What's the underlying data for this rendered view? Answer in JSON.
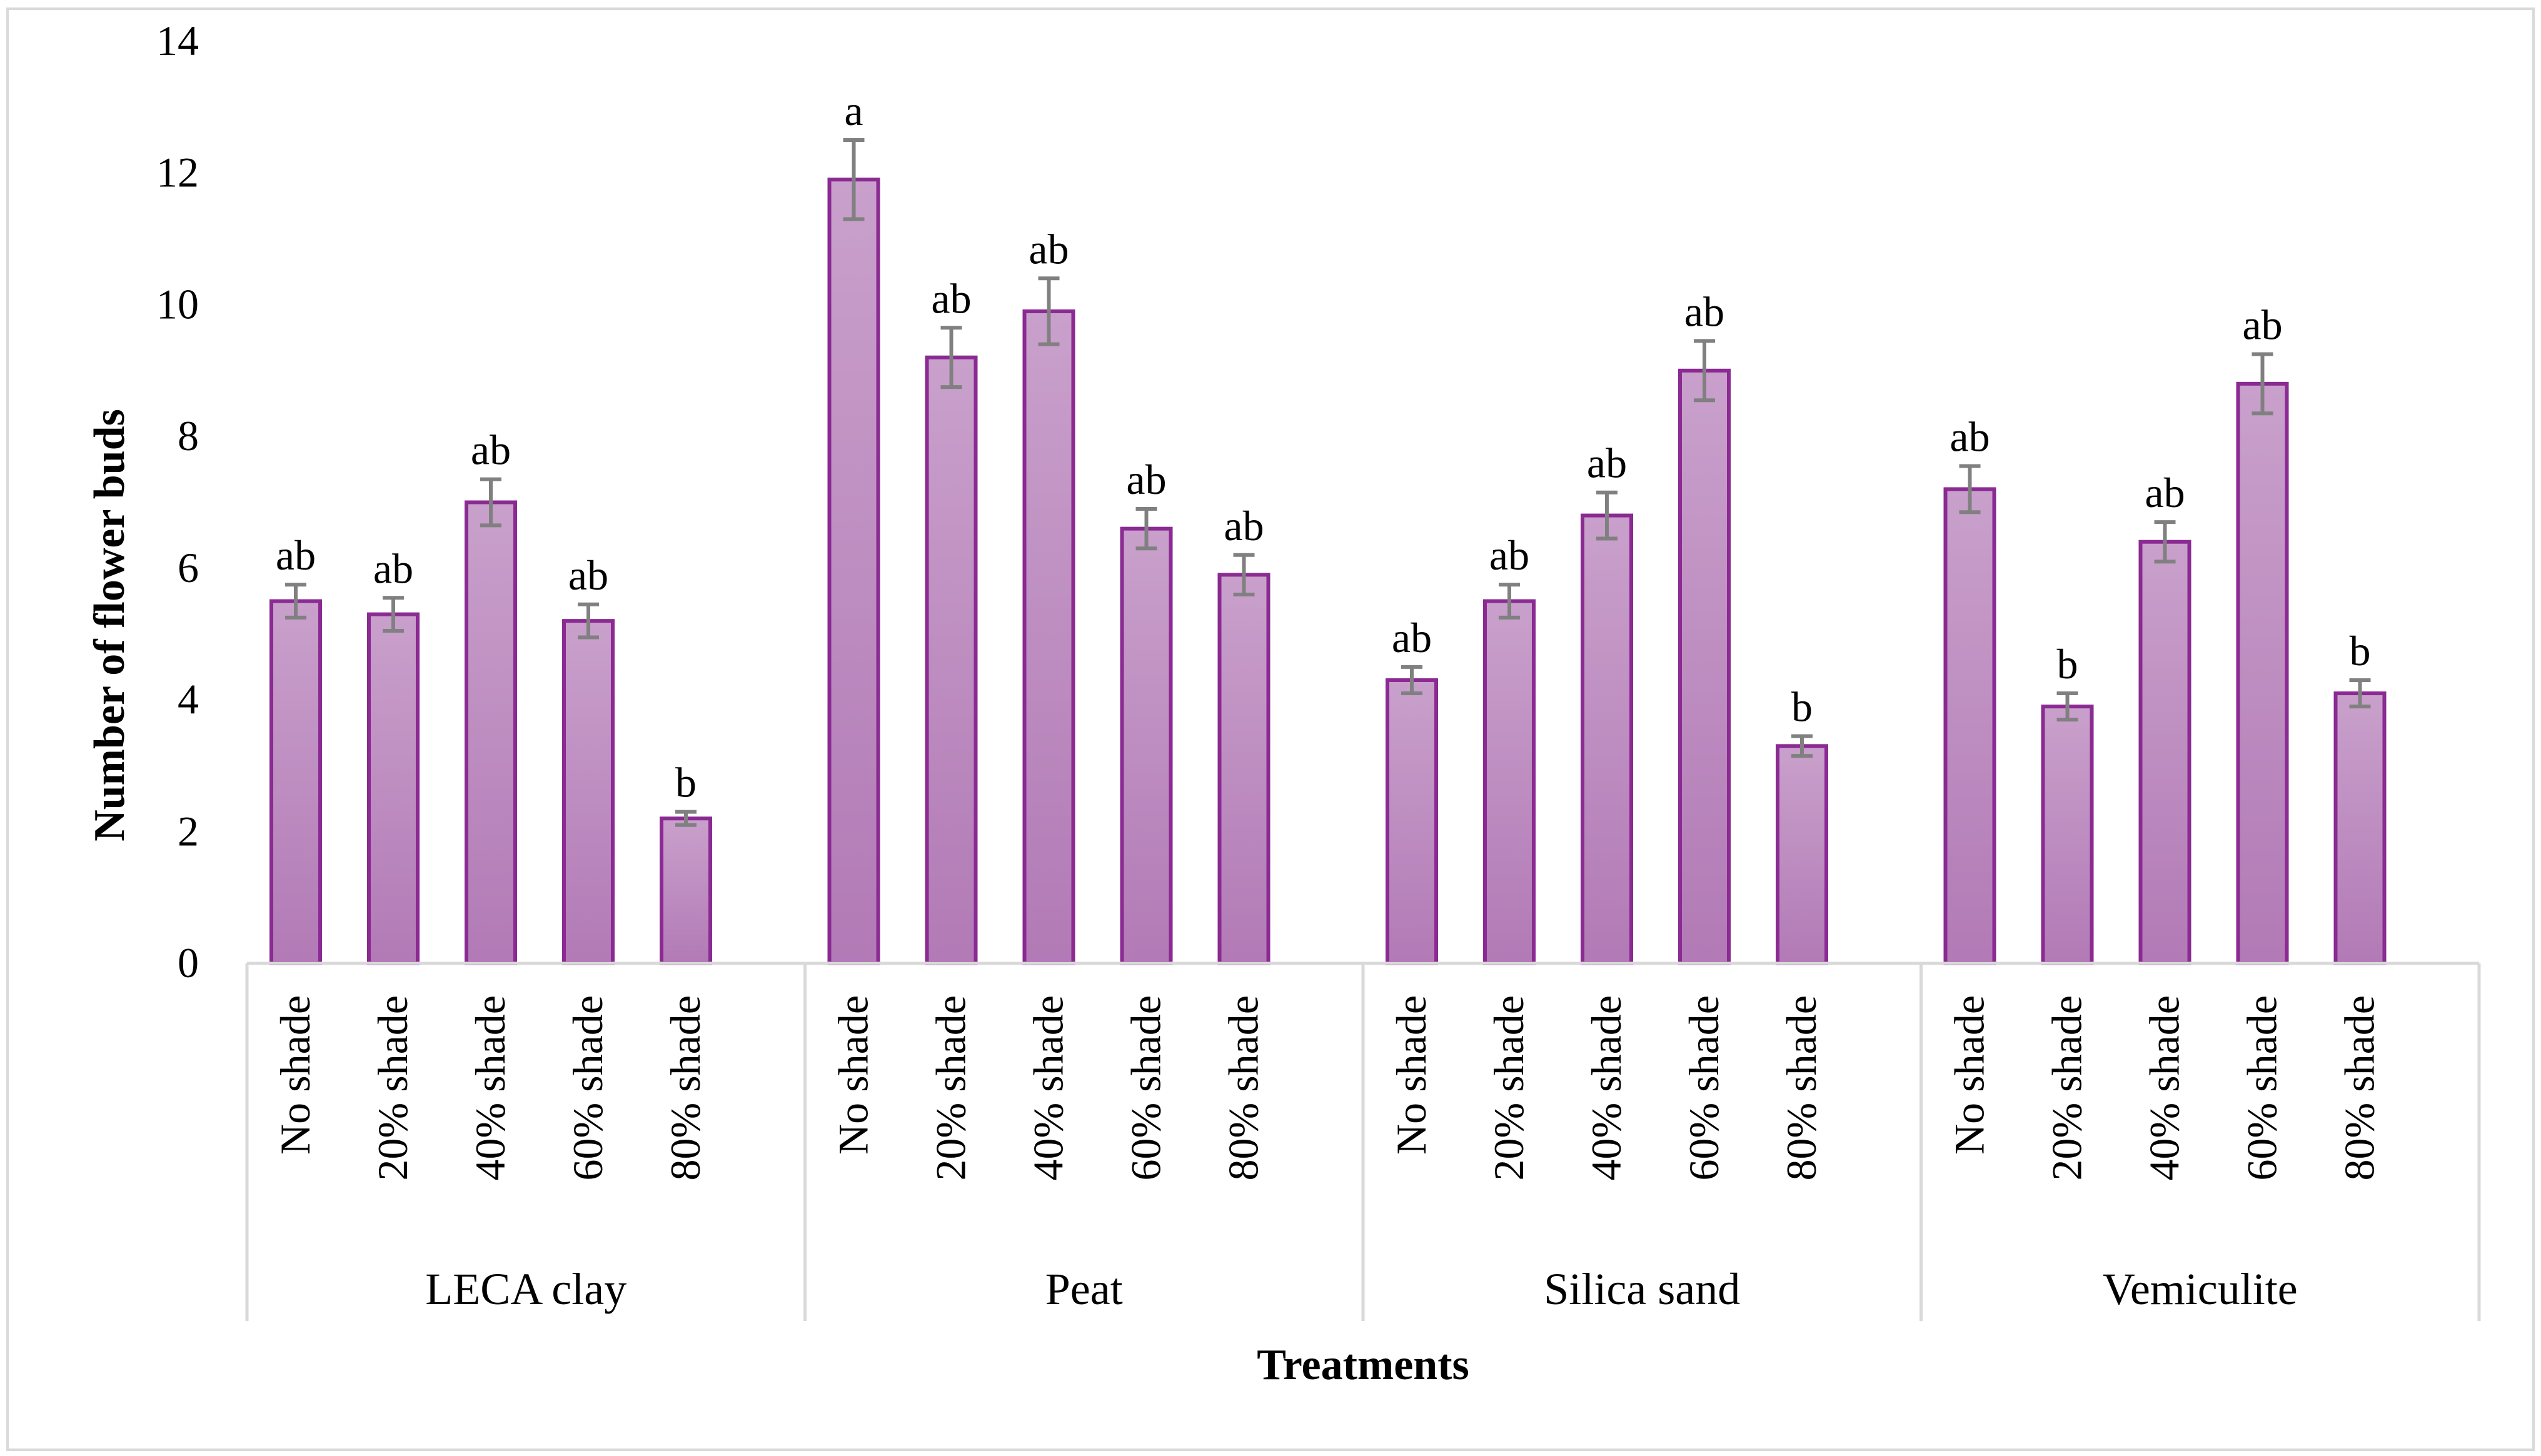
{
  "chart_data": {
    "type": "bar",
    "ylabel": "Number of flower buds",
    "xlabel": "Treatments",
    "ylim": [
      0,
      14
    ],
    "yticks": [
      0,
      2,
      4,
      6,
      8,
      10,
      12,
      14
    ],
    "gridlines": false,
    "groups": [
      {
        "name": "LECA clay",
        "categories": [
          "No shade",
          "20% shade",
          "40% shade",
          "60% shade",
          "80% shade"
        ],
        "values": [
          5.5,
          5.3,
          7.0,
          5.2,
          2.2
        ],
        "errors": [
          0.25,
          0.25,
          0.35,
          0.25,
          0.1
        ],
        "significance": [
          "ab",
          "ab",
          "ab",
          "ab",
          "b"
        ]
      },
      {
        "name": "Peat",
        "categories": [
          "No shade",
          "20% shade",
          "40% shade",
          "60% shade",
          "80% shade"
        ],
        "values": [
          11.9,
          9.2,
          9.9,
          6.6,
          5.9
        ],
        "errors": [
          0.6,
          0.45,
          0.5,
          0.3,
          0.3
        ],
        "significance": [
          "a",
          "ab",
          "ab",
          "ab",
          "ab"
        ]
      },
      {
        "name": "Silica sand",
        "categories": [
          "No shade",
          "20% shade",
          "40% shade",
          "60% shade",
          "80% shade"
        ],
        "values": [
          4.3,
          5.5,
          6.8,
          9.0,
          3.3
        ],
        "errors": [
          0.2,
          0.25,
          0.35,
          0.45,
          0.15
        ],
        "significance": [
          "ab",
          "ab",
          "ab",
          "ab",
          "b"
        ]
      },
      {
        "name": "Vemiculite",
        "categories": [
          "No shade",
          "20% shade",
          "40% shade",
          "60% shade",
          "80% shade"
        ],
        "values": [
          7.2,
          3.9,
          6.4,
          8.8,
          4.1
        ],
        "errors": [
          0.35,
          0.2,
          0.3,
          0.45,
          0.2
        ],
        "significance": [
          "ab",
          "b",
          "ab",
          "ab",
          "b"
        ]
      }
    ],
    "colors": {
      "bar_fill_top": "#c9a0cb",
      "bar_fill_bottom": "#b27ab6",
      "bar_stroke": "#8a2a92",
      "error_bar": "#808080",
      "axis_line": "#d9d9d9",
      "frame": "#d9d9d9"
    }
  }
}
